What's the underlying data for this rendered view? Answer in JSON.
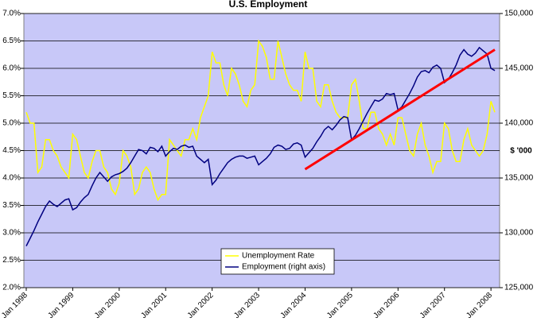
{
  "chart_data": {
    "type": "line",
    "title": "U.S. Employment",
    "y2_label": "$ '000",
    "legend": "bottom",
    "grid": true,
    "background": "#c8c8f8",
    "categories": [
      "Jan 1998",
      null,
      null,
      null,
      null,
      null,
      null,
      null,
      null,
      null,
      null,
      null,
      "Jan 1999",
      null,
      null,
      null,
      null,
      null,
      null,
      null,
      null,
      null,
      null,
      null,
      "Jan 2000",
      null,
      null,
      null,
      null,
      null,
      null,
      null,
      null,
      null,
      null,
      null,
      "Jan 2001",
      null,
      null,
      null,
      null,
      null,
      null,
      null,
      null,
      null,
      null,
      null,
      "Jan 2002",
      null,
      null,
      null,
      null,
      null,
      null,
      null,
      null,
      null,
      null,
      null,
      "Jan 2003",
      null,
      null,
      null,
      null,
      null,
      null,
      null,
      null,
      null,
      null,
      null,
      "Jan 2004",
      null,
      null,
      null,
      null,
      null,
      null,
      null,
      null,
      null,
      null,
      null,
      "Jan 2005",
      null,
      null,
      null,
      null,
      null,
      null,
      null,
      null,
      null,
      null,
      null,
      "Jan 2006",
      null,
      null,
      null,
      null,
      null,
      null,
      null,
      null,
      null,
      null,
      null,
      "Jan 2007",
      null,
      null,
      null,
      null,
      null,
      null,
      null,
      null,
      null,
      null,
      null,
      "Jan 2008",
      null
    ],
    "ylim": [
      2.0,
      7.0
    ],
    "yticks": [
      {
        "value": 2.0,
        "label": "2.0%"
      },
      {
        "value": 2.5,
        "label": "2.5%"
      },
      {
        "value": 3.0,
        "label": "3.0%"
      },
      {
        "value": 3.5,
        "label": "3.5%"
      },
      {
        "value": 4.0,
        "label": "4.0%"
      },
      {
        "value": 4.5,
        "label": "4.5%"
      },
      {
        "value": 5.0,
        "label": "5.0%"
      },
      {
        "value": 5.5,
        "label": "5.5%"
      },
      {
        "value": 6.0,
        "label": "6.0%"
      },
      {
        "value": 6.5,
        "label": "6.5%"
      },
      {
        "value": 7.0,
        "label": "7.0%"
      }
    ],
    "y2lim": [
      125000,
      150000
    ],
    "y2ticks": [
      {
        "value": 125000,
        "label": "125,000"
      },
      {
        "value": 130000,
        "label": "130,000"
      },
      {
        "value": 135000,
        "label": "135,000"
      },
      {
        "value": 140000,
        "label": "140,000"
      },
      {
        "value": 145000,
        "label": "145,000"
      },
      {
        "value": 150000,
        "label": "150,000"
      }
    ],
    "series": [
      {
        "name": "Unemployment Rate",
        "color": "#ffff00",
        "values": [
          5.2,
          5.0,
          5.0,
          4.1,
          4.2,
          4.7,
          4.7,
          4.5,
          4.4,
          4.2,
          4.1,
          4.0,
          4.8,
          4.7,
          4.4,
          4.1,
          4.0,
          4.3,
          4.5,
          4.5,
          4.2,
          4.1,
          3.8,
          3.7,
          3.9,
          4.5,
          4.4,
          4.2,
          3.7,
          3.8,
          4.1,
          4.2,
          4.1,
          3.8,
          3.6,
          3.7,
          3.7,
          4.7,
          4.6,
          4.5,
          4.4,
          4.7,
          4.7,
          4.9,
          4.7,
          5.1,
          5.3,
          5.5,
          6.3,
          6.1,
          6.1,
          5.7,
          5.5,
          6.0,
          5.9,
          5.7,
          5.4,
          5.3,
          5.6,
          5.7,
          6.5,
          6.4,
          6.2,
          5.8,
          5.8,
          6.5,
          6.2,
          5.9,
          5.7,
          5.6,
          5.6,
          5.4,
          6.3,
          6.0,
          6.0,
          5.4,
          5.3,
          5.7,
          5.7,
          5.4,
          5.2,
          5.1,
          5.1,
          5.1,
          5.7,
          5.8,
          5.4,
          4.9,
          4.9,
          5.2,
          5.2,
          4.9,
          4.8,
          4.6,
          4.8,
          4.6,
          5.1,
          5.1,
          4.8,
          4.5,
          4.4,
          4.8,
          5.0,
          4.6,
          4.4,
          4.1,
          4.3,
          4.3,
          5.0,
          4.9,
          4.5,
          4.3,
          4.3,
          4.7,
          4.9,
          4.6,
          4.5,
          4.4,
          4.5,
          4.8,
          5.4,
          5.2
        ]
      },
      {
        "name": "Employment (right axis)",
        "color": "#000080",
        "axis": "y2",
        "values": [
          128800,
          129500,
          130200,
          131000,
          131700,
          132400,
          132900,
          132600,
          132400,
          132700,
          133000,
          133100,
          132100,
          132300,
          132800,
          133200,
          133500,
          134300,
          135000,
          135500,
          135100,
          134700,
          135100,
          135300,
          135400,
          135600,
          135900,
          136400,
          137000,
          137600,
          137500,
          137200,
          137800,
          137700,
          137400,
          137900,
          137000,
          137400,
          137700,
          137600,
          137900,
          138000,
          137800,
          137900,
          137000,
          136700,
          136400,
          136700,
          134400,
          134800,
          135400,
          135900,
          136400,
          136700,
          136900,
          137000,
          137000,
          136800,
          136900,
          137000,
          136200,
          136500,
          136800,
          137200,
          137800,
          138000,
          137900,
          137600,
          137700,
          138100,
          138200,
          138000,
          136900,
          137300,
          137700,
          138300,
          138800,
          139400,
          139700,
          139400,
          139800,
          140300,
          140600,
          140500,
          138500,
          138900,
          139500,
          140200,
          140900,
          141500,
          142100,
          142000,
          142200,
          142700,
          142600,
          142700,
          141200,
          141500,
          142100,
          142700,
          143400,
          144200,
          144700,
          144800,
          144600,
          145100,
          145300,
          145000,
          143700,
          144000,
          144600,
          145300,
          146200,
          146700,
          146300,
          146100,
          146400,
          146900,
          146600,
          146300,
          145000,
          144800
        ]
      }
    ],
    "trendline": {
      "color": "#ff0000",
      "axis": "y2",
      "values": [
        null,
        null,
        null,
        null,
        null,
        null,
        null,
        null,
        null,
        null,
        null,
        null,
        null,
        null,
        null,
        null,
        null,
        null,
        null,
        null,
        null,
        null,
        null,
        null,
        null,
        null,
        null,
        null,
        null,
        null,
        null,
        null,
        null,
        null,
        null,
        null,
        null,
        null,
        null,
        null,
        null,
        null,
        null,
        null,
        null,
        null,
        null,
        null,
        null,
        null,
        null,
        null,
        null,
        null,
        null,
        null,
        null,
        null,
        null,
        null,
        null,
        null,
        null,
        null,
        null,
        null,
        null,
        null,
        null,
        null,
        null,
        null,
        135800,
        null,
        null,
        null,
        null,
        null,
        null,
        null,
        null,
        null,
        null,
        null,
        null,
        null,
        null,
        null,
        null,
        null,
        null,
        null,
        null,
        null,
        null,
        null,
        null,
        null,
        null,
        null,
        null,
        null,
        null,
        null,
        null,
        null,
        null,
        null,
        null,
        null,
        null,
        null,
        null,
        null,
        null,
        null,
        null,
        null,
        null,
        null,
        null,
        146700
      ]
    }
  }
}
